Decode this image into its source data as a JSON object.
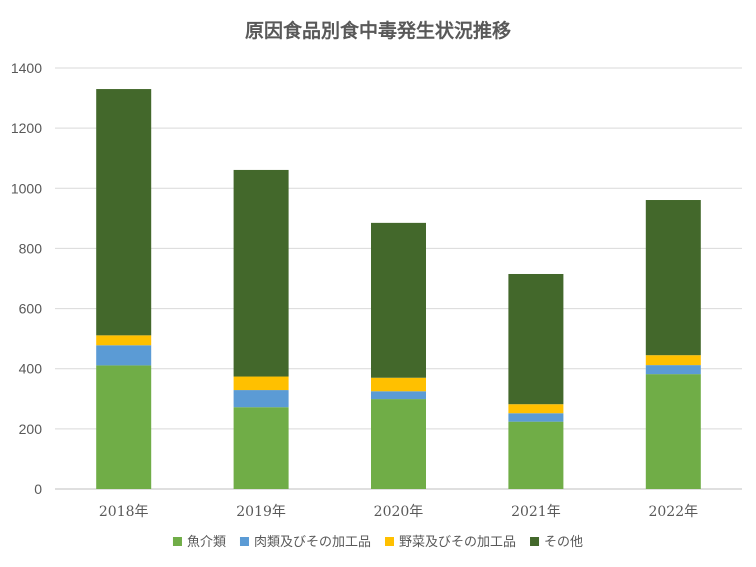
{
  "chart_data": {
    "type": "bar",
    "stacked": true,
    "title": "原因食品別食中毒発生状況推移",
    "categories": [
      "2018年",
      "2019年",
      "2020年",
      "2021年",
      "2022年"
    ],
    "series": [
      {
        "name": "魚介類",
        "color": "#70ad47",
        "values": [
          411,
          272,
          299,
          224,
          382
        ]
      },
      {
        "name": "肉類及びその加工品",
        "color": "#5b9bd5",
        "values": [
          67,
          57,
          26,
          28,
          30
        ]
      },
      {
        "name": "野菜及びその加工品",
        "color": "#ffc000",
        "values": [
          33,
          45,
          45,
          30,
          33
        ]
      },
      {
        "name": "その他",
        "color": "#43682b",
        "values": [
          819,
          687,
          515,
          433,
          516
        ]
      }
    ],
    "ylim": [
      0,
      1400
    ],
    "yticks": [
      0,
      200,
      400,
      600,
      800,
      1000,
      1200,
      1400
    ],
    "grid": true,
    "legend_position": "bottom"
  }
}
